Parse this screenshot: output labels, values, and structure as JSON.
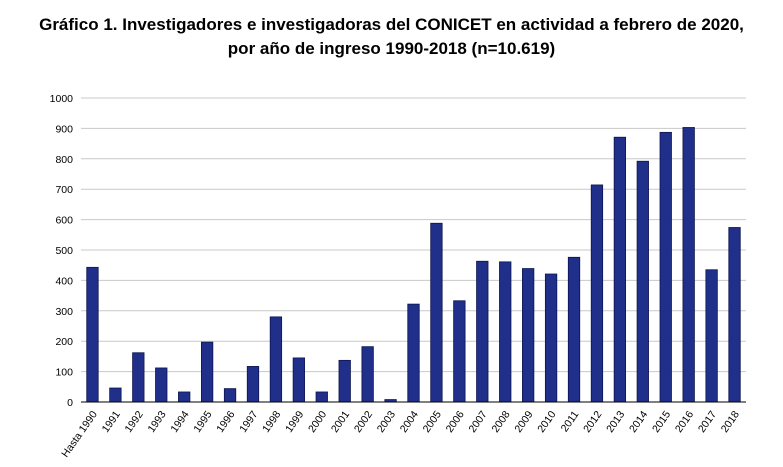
{
  "title_line1": "Gráfico 1. Investigadores e investigadoras del CONICET en actividad a febrero de 2020,",
  "title_line2": "por año de ingreso 1990-2018 (n=10.619)",
  "colors": {
    "bar": "#1f2f8a",
    "bar_stroke": "#0d1550",
    "grid": "#c8c8c8",
    "axis": "#000000"
  },
  "chart_data": {
    "type": "bar",
    "categories": [
      "Hasta 1990",
      "1991",
      "1992",
      "1993",
      "1994",
      "1995",
      "1996",
      "1997",
      "1998",
      "1999",
      "2000",
      "2001",
      "2002",
      "2003",
      "2004",
      "2005",
      "2006",
      "2007",
      "2008",
      "2009",
      "2010",
      "2011",
      "2012",
      "2013",
      "2014",
      "2015",
      "2016",
      "2017",
      "2018"
    ],
    "values": [
      443,
      46,
      162,
      112,
      33,
      197,
      44,
      117,
      280,
      145,
      33,
      137,
      182,
      8,
      322,
      588,
      333,
      463,
      461,
      439,
      421,
      476,
      714,
      871,
      792,
      887,
      903,
      435,
      574
    ],
    "ylim": [
      0,
      1000
    ],
    "yticks": [
      0,
      100,
      200,
      300,
      400,
      500,
      600,
      700,
      800,
      900,
      1000
    ],
    "grid": true,
    "legend": false
  }
}
